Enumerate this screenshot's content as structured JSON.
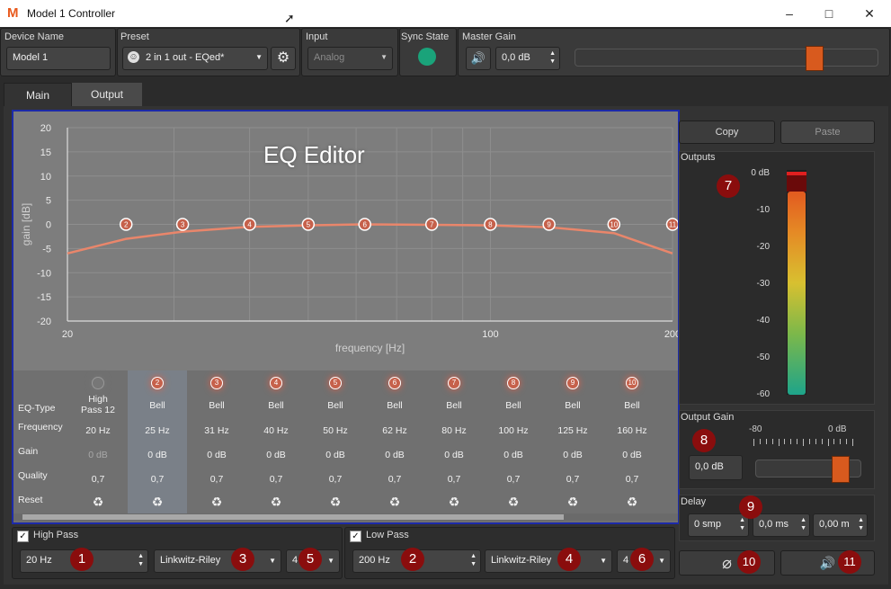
{
  "window": {
    "title": "Model 1 Controller",
    "logo": "M"
  },
  "header": {
    "device_name_label": "Device Name",
    "device_name_value": "Model 1",
    "preset_label": "Preset",
    "preset_value": "2 in 1 out - EQed*",
    "input_label": "Input",
    "input_value": "Analog",
    "sync_label": "Sync State",
    "sync_color": "#1aa37a",
    "master_gain_label": "Master Gain",
    "master_gain_value": "0,0 dB",
    "master_gain_slider_fraction": 0.79
  },
  "tabs": [
    {
      "label": "Main"
    },
    {
      "label": "Output"
    }
  ],
  "eq_editor": {
    "title": "EQ Editor",
    "chart_data": {
      "type": "line",
      "xlabel": "frequency [Hz]",
      "ylabel": "gain [dB]",
      "xscale": "log",
      "xlim": [
        20,
        200
      ],
      "ylim": [
        -20,
        20
      ],
      "x_ticks": [
        "20",
        "100",
        "200"
      ],
      "y_ticks": [
        20,
        15,
        10,
        5,
        0,
        -5,
        -10,
        -15,
        -20
      ],
      "series": [
        {
          "x": [
            20,
            25,
            31,
            40,
            50,
            62,
            80,
            100,
            125,
            160,
            200
          ],
          "y": [
            -6,
            -3,
            -1.5,
            -0.5,
            -0.2,
            0,
            -0.1,
            -0.2,
            -0.6,
            -1.8,
            -6
          ]
        }
      ],
      "nodes": [
        {
          "label": "2",
          "freq": 25
        },
        {
          "label": "3",
          "freq": 31
        },
        {
          "label": "4",
          "freq": 40
        },
        {
          "label": "5",
          "freq": 50
        },
        {
          "label": "6",
          "freq": 62
        },
        {
          "label": "7",
          "freq": 80
        },
        {
          "label": "8",
          "freq": 100
        },
        {
          "label": "9",
          "freq": 125
        },
        {
          "label": "10",
          "freq": 160
        },
        {
          "label": "11",
          "freq": 200
        }
      ]
    },
    "row_labels": [
      "EQ-Type",
      "Frequency",
      "Gain",
      "Quality",
      "Reset"
    ],
    "bands": [
      {
        "num": "",
        "type": "High Pass 12",
        "freq": "20 Hz",
        "gain": "0 dB",
        "q": "0,7"
      },
      {
        "num": "2",
        "type": "Bell",
        "freq": "25 Hz",
        "gain": "0 dB",
        "q": "0,7"
      },
      {
        "num": "3",
        "type": "Bell",
        "freq": "31 Hz",
        "gain": "0 dB",
        "q": "0,7"
      },
      {
        "num": "4",
        "type": "Bell",
        "freq": "40 Hz",
        "gain": "0 dB",
        "q": "0,7"
      },
      {
        "num": "5",
        "type": "Bell",
        "freq": "50 Hz",
        "gain": "0 dB",
        "q": "0,7"
      },
      {
        "num": "6",
        "type": "Bell",
        "freq": "62 Hz",
        "gain": "0 dB",
        "q": "0,7"
      },
      {
        "num": "7",
        "type": "Bell",
        "freq": "80 Hz",
        "gain": "0 dB",
        "q": "0,7"
      },
      {
        "num": "8",
        "type": "Bell",
        "freq": "100 Hz",
        "gain": "0 dB",
        "q": "0,7"
      },
      {
        "num": "9",
        "type": "Bell",
        "freq": "125 Hz",
        "gain": "0 dB",
        "q": "0,7"
      },
      {
        "num": "10",
        "type": "Bell",
        "freq": "160 Hz",
        "gain": "0 dB",
        "q": "0,7"
      }
    ],
    "reset_icon": "recycle-icon"
  },
  "filters": {
    "high_pass": {
      "label": "High Pass",
      "freq": "20 Hz",
      "type": "Linkwitz-Riley",
      "order": "4",
      "checked": true
    },
    "low_pass": {
      "label": "Low Pass",
      "freq": "200 Hz",
      "type": "Linkwitz-Riley",
      "order": "4",
      "checked": true
    }
  },
  "right": {
    "copy_label": "Copy",
    "paste_label": "Paste",
    "outputs_label": "Outputs",
    "meter_ticks": [
      "0 dB",
      "-10",
      "-20",
      "-30",
      "-40",
      "-50",
      "-60"
    ],
    "output_gain_label": "Output Gain",
    "output_gain_scale_min": "-80",
    "output_gain_scale_max": "0 dB",
    "output_gain_value": "0,0 dB",
    "output_gain_slider_fraction": 0.8,
    "delay_label": "Delay",
    "delay_samples": "0 smp",
    "delay_ms": "0,0 ms",
    "delay_m": "0,00 m"
  },
  "annotations": [
    "1",
    "2",
    "3",
    "4",
    "5",
    "6",
    "7",
    "8",
    "9",
    "10",
    "11"
  ]
}
